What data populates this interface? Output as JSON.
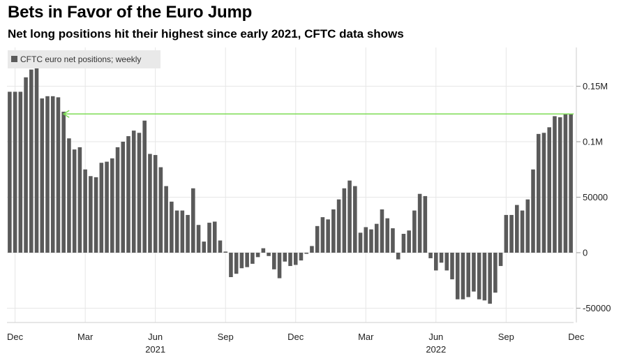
{
  "title": "Bets in Favor of the Euro Jump",
  "subtitle": "Net long positions hit their highest since early 2021, CFTC data shows",
  "chart_data": {
    "type": "bar",
    "series": [
      {
        "name": "CFTC euro net positions; weekly",
        "values": [
          145000,
          145000,
          145000,
          158000,
          165000,
          167000,
          139000,
          141000,
          141000,
          140000,
          127000,
          103000,
          93000,
          95000,
          75000,
          69000,
          68000,
          81000,
          82000,
          85000,
          95000,
          100000,
          105000,
          110000,
          108000,
          119000,
          89000,
          88000,
          77000,
          60000,
          46000,
          38000,
          38000,
          34000,
          58000,
          25000,
          10000,
          27000,
          28000,
          11000,
          1000,
          -22000,
          -19000,
          -14000,
          -13000,
          -10000,
          -4000,
          4000,
          -3000,
          -15000,
          -23000,
          -8000,
          -12000,
          -11000,
          -7000,
          -1000,
          6000,
          24000,
          32000,
          30000,
          39000,
          48000,
          58000,
          65000,
          60000,
          18000,
          23000,
          21000,
          26000,
          39000,
          31000,
          22000,
          -6000,
          17000,
          20000,
          38000,
          53000,
          51000,
          -5000,
          -16000,
          -9000,
          -16000,
          -24000,
          -42000,
          -42000,
          -40000,
          -35000,
          -42000,
          -43000,
          -46000,
          -36000,
          -12000,
          34000,
          34000,
          43000,
          38000,
          48000,
          75000,
          107000,
          108000,
          113000,
          123000,
          122000,
          125000,
          125000
        ]
      }
    ],
    "x_ticks": [
      {
        "label": "Dec",
        "index": 1
      },
      {
        "label": "Mar",
        "index": 14
      },
      {
        "label": "Jun",
        "index": 27
      },
      {
        "label": "Sep",
        "index": 40
      },
      {
        "label": "Dec",
        "index": 53
      },
      {
        "label": "Mar",
        "index": 66
      },
      {
        "label": "Jun",
        "index": 79
      },
      {
        "label": "Sep",
        "index": 92
      },
      {
        "label": "Dec",
        "index": 105
      }
    ],
    "year_labels": [
      {
        "label": "2021",
        "index": 27
      },
      {
        "label": "2022",
        "index": 79
      }
    ],
    "y_ticks": [
      {
        "label": "0.15M",
        "value": 150000
      },
      {
        "label": "0.1M",
        "value": 100000
      },
      {
        "label": "50000",
        "value": 50000
      },
      {
        "label": "0",
        "value": 0
      },
      {
        "label": "-50000",
        "value": -50000
      }
    ],
    "ylim": [
      -65000,
      185000
    ],
    "annotation": {
      "type": "horizontal-arrow",
      "value": 125000,
      "from_index": 104,
      "to_index": 10,
      "color": "#7ddc55"
    },
    "bar_color": "#5a5a5a",
    "grid": true,
    "legend_position": "top-left"
  }
}
